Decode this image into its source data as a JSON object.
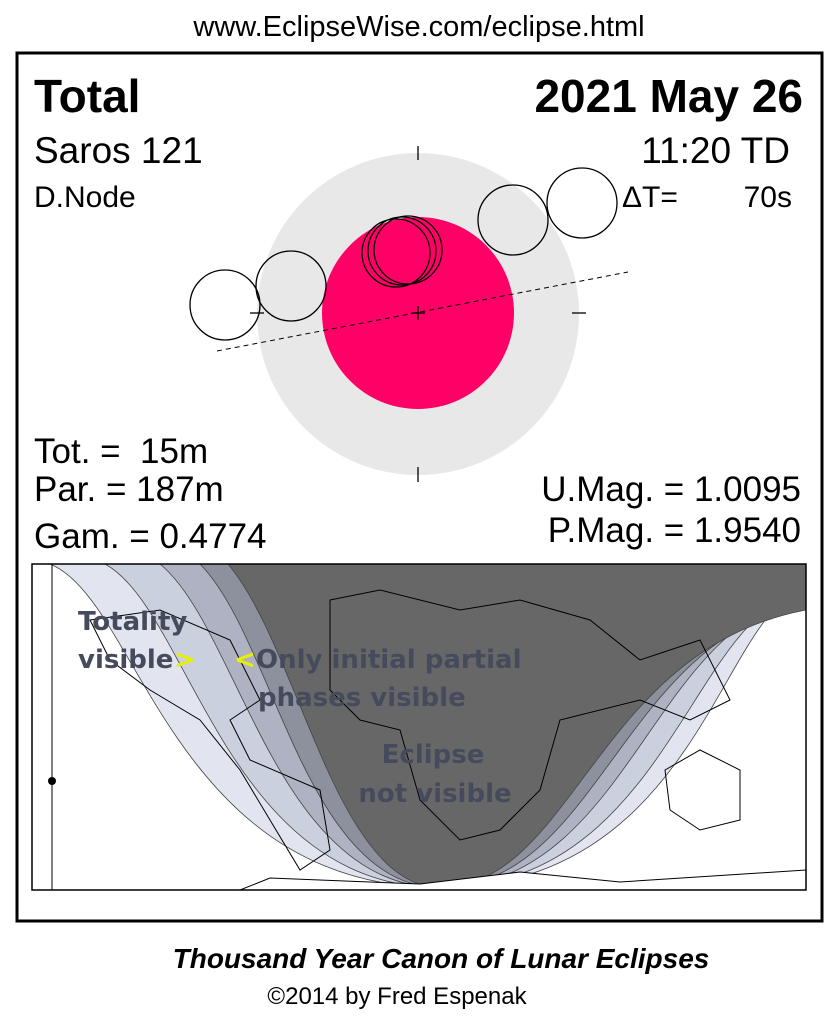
{
  "header": {
    "url": "www.EclipseWise.com/eclipse.html"
  },
  "eclipse": {
    "type": "Total",
    "date": "2021 May 26",
    "saros": "Saros 121",
    "time": "11:20 TD",
    "node": "D.Node",
    "delta_t_label": "ΔT=",
    "delta_t": "70s"
  },
  "stats": {
    "tot": "Tot. =  15m",
    "par": "Par. = 187m",
    "gam": "Gam. = 0.4774",
    "umag": "U.Mag. = 1.0095",
    "pmag": "P.Mag. = 1.9540"
  },
  "map": {
    "totality": [
      "Totality",
      "visible"
    ],
    "totality_arrow": ">",
    "partial_arrow": "<",
    "partial": [
      "Only initial partial",
      "phases visible"
    ],
    "not_visible": [
      "Eclipse",
      "not visible"
    ]
  },
  "footer": {
    "title": "Thousand Year Canon of Lunar Eclipses",
    "credit": "©2014 by Fred Espenak"
  }
}
